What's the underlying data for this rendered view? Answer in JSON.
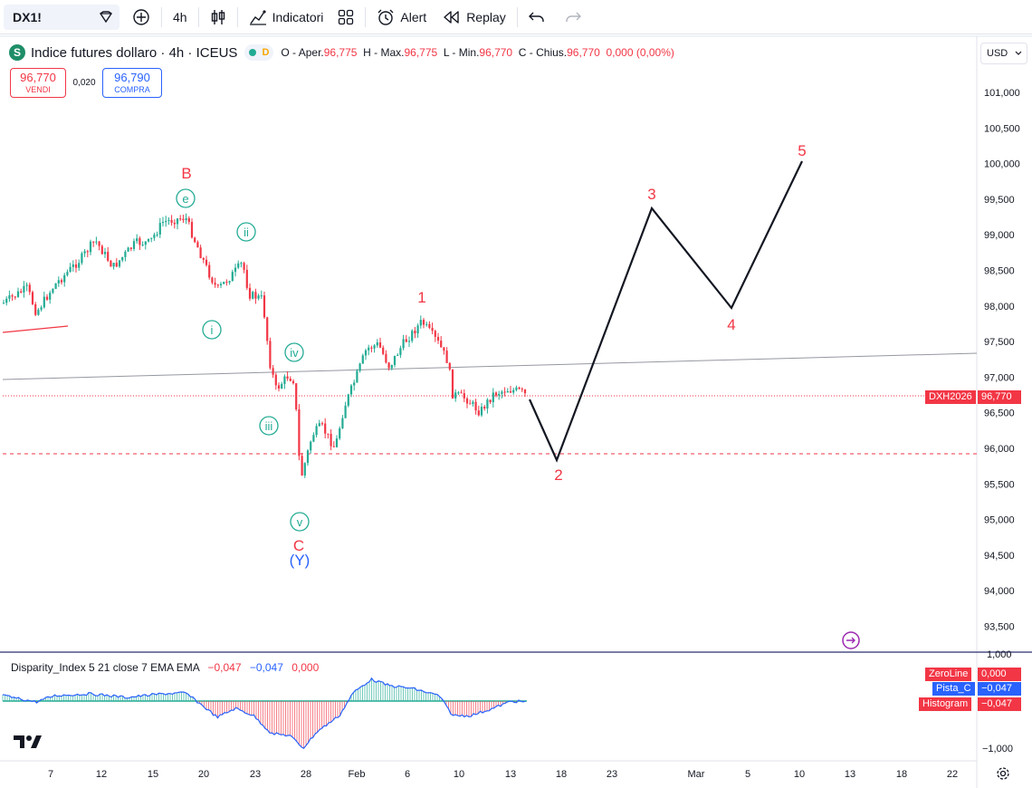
{
  "toolbar": {
    "symbol": "DX1!",
    "interval": "4h",
    "indicators_label": "Indicatori",
    "alert_label": "Alert",
    "replay_label": "Replay"
  },
  "header": {
    "sym_letter": "S",
    "title": "Indice futures dollaro · 4h · ICEUS",
    "status_letter": "D",
    "o_label": "O - Aper.",
    "o_value": "96,775",
    "h_label": "H - Max.",
    "h_value": "96,775",
    "l_label": "L - Min.",
    "l_value": "96,770",
    "c_label": "C - Chius.",
    "c_value": "96,770",
    "change": "0,000 (0,00%)"
  },
  "trade": {
    "sell_price": "96,770",
    "sell_label": "VENDI",
    "spread": "0,020",
    "buy_price": "96,790",
    "buy_label": "COMPRA"
  },
  "currency": "USD",
  "price_axis": [
    "101,000",
    "100,500",
    "100,000",
    "99,500",
    "99,000",
    "98,500",
    "98,000",
    "97,500",
    "97,000",
    "96,500",
    "96,000",
    "95,500",
    "95,000",
    "94,500",
    "94,000",
    "93,500"
  ],
  "current_price": {
    "symbol_tag": "DXH2026",
    "value": "96,770"
  },
  "indicator": {
    "legend_name": "Disparity_Index 5 21 close 7 EMA EMA",
    "v1": "−0,047",
    "v2": "−0,047",
    "v3": "0,000",
    "tags": [
      {
        "name": "ZeroLine",
        "value": "0,000",
        "color": "red"
      },
      {
        "name": "Pista_C",
        "value": "−0,047",
        "color": "blue"
      },
      {
        "name": "Histogram",
        "value": "−0,047",
        "color": "red"
      }
    ],
    "axis_top": "1,000",
    "axis_bottom": "−1,000"
  },
  "time_axis": [
    "7",
    "12",
    "15",
    "20",
    "23",
    "28",
    "Feb",
    "6",
    "10",
    "13",
    "18",
    "23",
    "Mar",
    "5",
    "10",
    "13",
    "18",
    "22"
  ],
  "wave_labels": {
    "B": "B",
    "e": "e",
    "ii": "ii",
    "i": "i",
    "iv": "iv",
    "iii": "iii",
    "v": "v",
    "C": "C",
    "Y": "(Y)",
    "w1": "1",
    "w2": "2",
    "w3": "3",
    "w4": "4",
    "w5": "5"
  },
  "colors": {
    "up": "#22ab94",
    "down": "#f23645",
    "wave_red": "#f23645",
    "wave_green": "#22ab94",
    "wave_blue": "#2962ff"
  }
}
